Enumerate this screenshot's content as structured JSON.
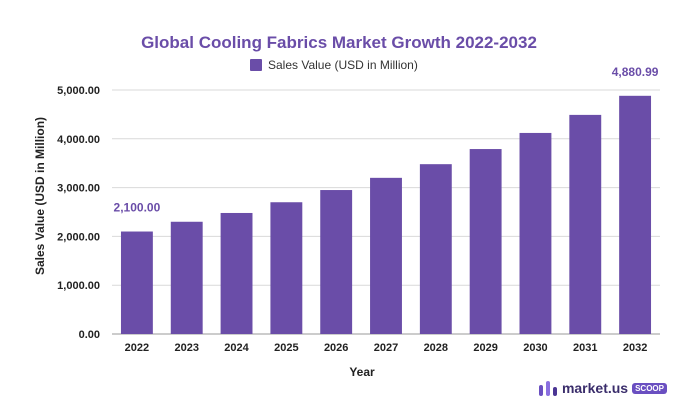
{
  "colors": {
    "bar": "#6a4da8",
    "title": "#6a4da8",
    "grid": "#d9d9d9",
    "axis_text": "#222222"
  },
  "chart_data": {
    "type": "bar",
    "title": "Global Cooling Fabrics Market Growth 2022-2032",
    "xlabel": "Year",
    "ylabel": "Sales Value (USD in Million)",
    "legend": "Sales Value (USD in Million)",
    "legend_position": "top-center",
    "grid": true,
    "ylim": [
      0,
      5000
    ],
    "yticks": [
      0,
      1000,
      2000,
      3000,
      4000,
      5000
    ],
    "ytick_labels": [
      "0.00",
      "1,000.00",
      "2,000.00",
      "3,000.00",
      "4,000.00",
      "5,000.00"
    ],
    "categories": [
      "2022",
      "2023",
      "2024",
      "2025",
      "2026",
      "2027",
      "2028",
      "2029",
      "2030",
      "2031",
      "2032"
    ],
    "values": [
      2100.0,
      2300.0,
      2480.0,
      2700.0,
      2950.0,
      3200.0,
      3480.0,
      3790.0,
      4120.0,
      4490.0,
      4880.99
    ],
    "data_labels": [
      {
        "index": 0,
        "text": "2,100.00"
      },
      {
        "index": 10,
        "text": "4,880.99"
      }
    ]
  },
  "logo": {
    "brand": "market.us",
    "badge": "SCOOP"
  }
}
